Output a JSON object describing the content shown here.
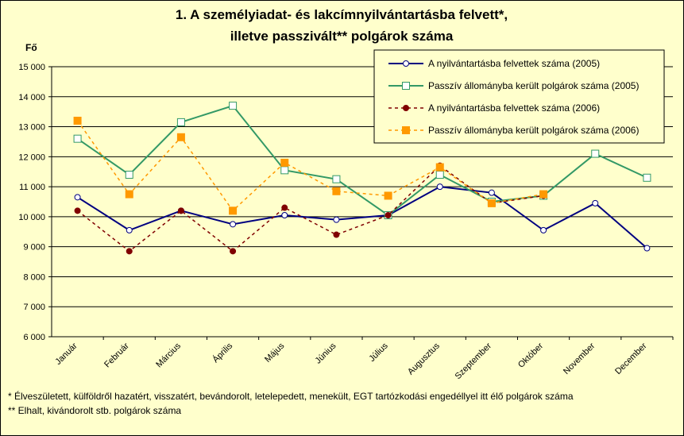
{
  "chart_data": {
    "type": "line",
    "title": [
      "1. A személyiadat- és lakcímnyilvántartásba felvett*,",
      "illetve passzivált** polgárok száma"
    ],
    "y_label": "Fő",
    "categories": [
      "Január",
      "Február",
      "Március",
      "Április",
      "Május",
      "Június",
      "Július",
      "Augusztus",
      "Szeptember",
      "Október",
      "November",
      "December"
    ],
    "series": [
      {
        "name": "A nyilvántartásba felvettek száma (2005)",
        "color": "#000080",
        "dashed": false,
        "marker": "circle",
        "values": [
          10650,
          9550,
          10200,
          9750,
          10050,
          9900,
          10050,
          11000,
          10800,
          9550,
          10450,
          8950
        ]
      },
      {
        "name": "Passzív állományba került polgárok száma (2005)",
        "color": "#339966",
        "dashed": false,
        "marker": "square-open",
        "values": [
          12600,
          11400,
          13150,
          13700,
          11550,
          11250,
          10050,
          11400,
          10500,
          10700,
          12100,
          11300
        ]
      },
      {
        "name": "A nyilvántartásba felvettek száma (2006)",
        "color": "#800000",
        "dashed": true,
        "marker": "circle-filled",
        "values": [
          10200,
          8850,
          10200,
          8850,
          10300,
          9400,
          10050,
          11700,
          10450,
          10700,
          null,
          null
        ]
      },
      {
        "name": "Passzív állományba került polgárok száma (2006)",
        "color": "#ff9900",
        "dashed": true,
        "marker": "square-filled",
        "values": [
          13200,
          10750,
          12650,
          10200,
          11800,
          10850,
          10700,
          11650,
          10450,
          10750,
          null,
          null
        ]
      }
    ],
    "ylim": [
      6000,
      15000
    ],
    "yticks": [
      {
        "value": 6000,
        "label": "6 000"
      },
      {
        "value": 7000,
        "label": "7 000"
      },
      {
        "value": 8000,
        "label": "8 000"
      },
      {
        "value": 9000,
        "label": "9 000"
      },
      {
        "value": 10000,
        "label": "10 000"
      },
      {
        "value": 11000,
        "label": "11 000"
      },
      {
        "value": 12000,
        "label": "12 000"
      },
      {
        "value": 13000,
        "label": "13 000"
      },
      {
        "value": 14000,
        "label": "14 000"
      },
      {
        "value": 15000,
        "label": "15 000"
      }
    ],
    "grid": true,
    "legend": "top-right",
    "footnotes": [
      "* Élveszületett, külföldről hazatért, visszatért, bevándorolt, letelepedett, menekült, EGT tartózkodási engedéllyel itt élő  polgárok száma",
      "** Elhalt, kivándorolt stb. polgárok száma"
    ]
  }
}
